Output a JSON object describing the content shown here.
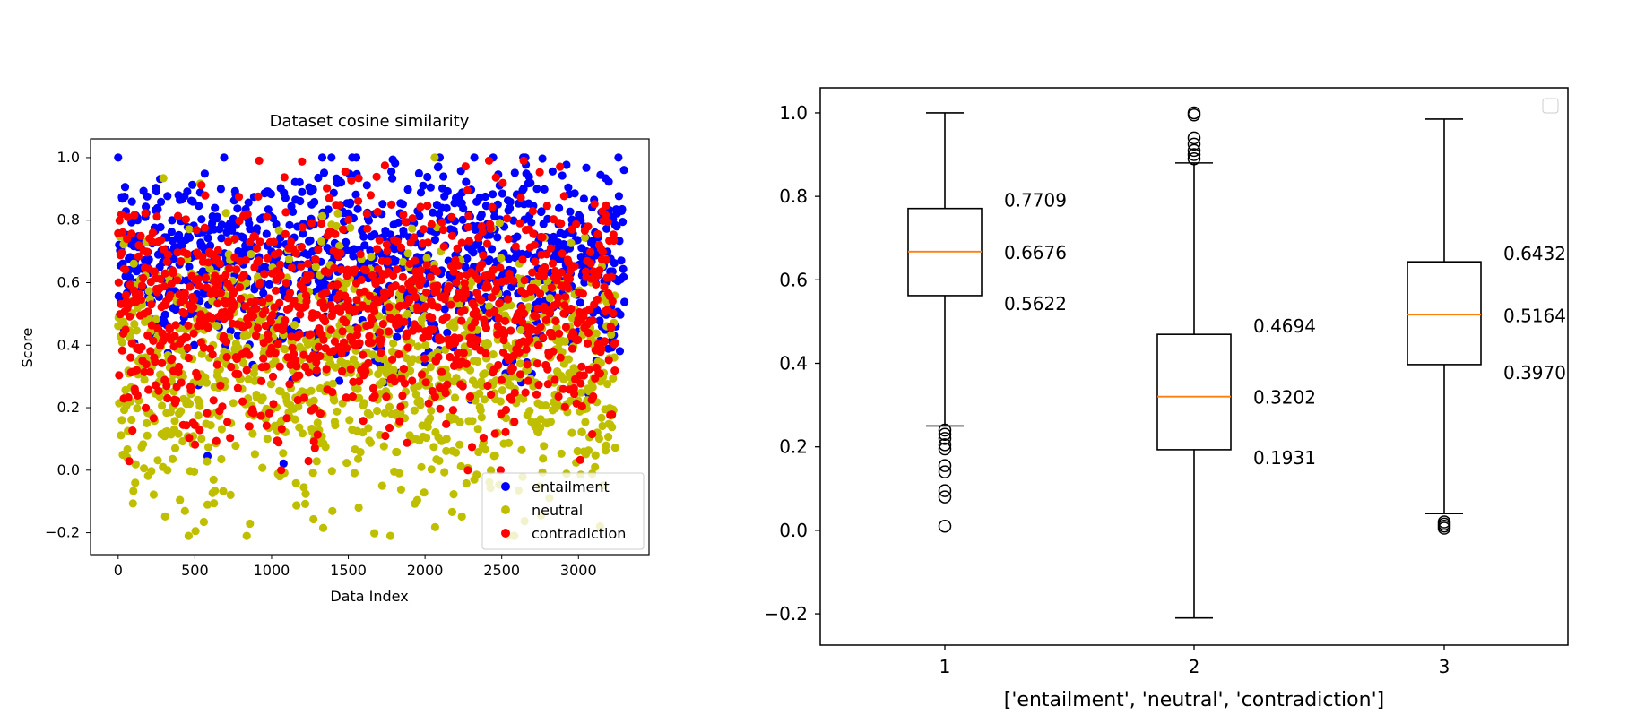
{
  "chart_data": [
    {
      "type": "scatter",
      "title": "Dataset cosine similarity",
      "xlabel": "Data Index",
      "ylabel": "Score",
      "xlim": [
        -180,
        3460
      ],
      "ylim": [
        -0.27,
        1.06
      ],
      "xticks": [
        0,
        500,
        1000,
        1500,
        2000,
        2500,
        3000
      ],
      "yticks": [
        -0.2,
        0.0,
        0.2,
        0.4,
        0.6,
        0.8,
        1.0
      ],
      "grid": false,
      "legend_position": "lower right",
      "series": [
        {
          "name": "entailment",
          "color": "#0000ff",
          "x_range": [
            0,
            3300
          ],
          "count": 1100,
          "center": 0.67,
          "q1": 0.5622,
          "q3": 0.7709,
          "y_min": 0.01,
          "y_max": 1.0
        },
        {
          "name": "neutral",
          "color": "#bfbf00",
          "x_range": [
            0,
            3240
          ],
          "count": 1080,
          "center": 0.32,
          "q1": 0.1931,
          "q3": 0.4694,
          "y_min": -0.21,
          "y_max": 1.0
        },
        {
          "name": "contradiction",
          "color": "#ff0000",
          "x_range": [
            0,
            3240
          ],
          "count": 1080,
          "center": 0.5164,
          "q1": 0.397,
          "q3": 0.6432,
          "y_min": 0.0,
          "y_max": 0.99
        }
      ]
    },
    {
      "type": "box",
      "xlabel": "['entailment', 'neutral', 'contradiction']",
      "ylabel": "",
      "ylim": [
        -0.275,
        1.06
      ],
      "yticks": [
        -0.2,
        0.0,
        0.2,
        0.4,
        0.6,
        0.8,
        1.0
      ],
      "categories": [
        "1",
        "2",
        "3"
      ],
      "median_color": "#ff7f0e",
      "boxes": [
        {
          "category": "1",
          "whisker_low": 0.25,
          "q1": 0.5622,
          "median": 0.6676,
          "q3": 0.7709,
          "whisker_high": 1.0,
          "outliers": [
            0.01,
            0.08,
            0.095,
            0.14,
            0.155,
            0.195,
            0.205,
            0.22,
            0.23,
            0.24
          ],
          "labels": [
            "0.7709",
            "0.6676",
            "0.5622"
          ]
        },
        {
          "category": "2",
          "whisker_low": -0.21,
          "q1": 0.1931,
          "median": 0.3202,
          "q3": 0.4694,
          "whisker_high": 0.88,
          "outliers": [
            0.89,
            0.9,
            0.91,
            0.925,
            0.94,
            0.995,
            1.0
          ],
          "labels": [
            "0.4694",
            "0.3202",
            "0.1931"
          ]
        },
        {
          "category": "3",
          "whisker_low": 0.04,
          "q1": 0.397,
          "median": 0.5164,
          "q3": 0.6432,
          "whisker_high": 0.985,
          "outliers": [
            0.005,
            0.01,
            0.015,
            0.02
          ],
          "labels": [
            "0.6432",
            "0.5164",
            "0.3970"
          ]
        }
      ],
      "legend": {
        "visible": true,
        "entries": []
      }
    }
  ]
}
